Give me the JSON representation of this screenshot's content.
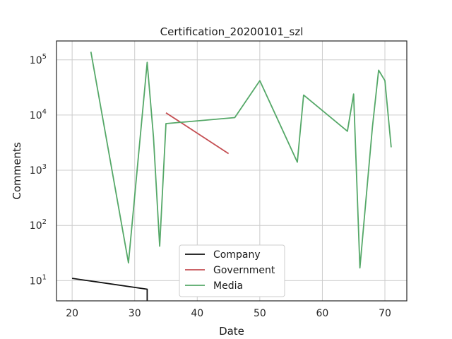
{
  "chart_data": {
    "type": "line",
    "title": "Certification_20200101_szl",
    "xlabel": "Date",
    "ylabel": "Comments",
    "xlim": [
      17.5,
      73.5
    ],
    "ylim": [
      4.3,
      220000
    ],
    "yscale": "log",
    "grid": true,
    "legend_position": "lower center",
    "x_ticks": [
      20,
      30,
      40,
      50,
      60,
      70
    ],
    "y_ticks": [
      {
        "value": 10,
        "base": "10",
        "exp": "1"
      },
      {
        "value": 100,
        "base": "10",
        "exp": "2"
      },
      {
        "value": 1000,
        "base": "10",
        "exp": "3"
      },
      {
        "value": 10000,
        "base": "10",
        "exp": "4"
      },
      {
        "value": 100000,
        "base": "10",
        "exp": "5"
      }
    ],
    "series": [
      {
        "name": "Company",
        "color": "#111111",
        "points": [
          [
            20,
            11
          ],
          [
            32,
            7
          ],
          [
            32,
            4.3
          ]
        ]
      },
      {
        "name": "Government",
        "color": "#c44e52",
        "points": [
          [
            35,
            11000
          ],
          [
            45,
            2000
          ]
        ]
      },
      {
        "name": "Media",
        "color": "#55a868",
        "points": [
          [
            23,
            140000
          ],
          [
            29,
            21
          ],
          [
            32,
            90000
          ],
          [
            33,
            4000
          ],
          [
            34,
            42
          ],
          [
            35,
            7000
          ],
          [
            46,
            9000
          ],
          [
            50,
            42000
          ],
          [
            56,
            1400
          ],
          [
            57,
            23000
          ],
          [
            64,
            5100
          ],
          [
            65,
            24000
          ],
          [
            66,
            17
          ],
          [
            68,
            6000
          ],
          [
            69,
            65000
          ],
          [
            70,
            42000
          ],
          [
            71,
            2600
          ]
        ]
      }
    ]
  }
}
